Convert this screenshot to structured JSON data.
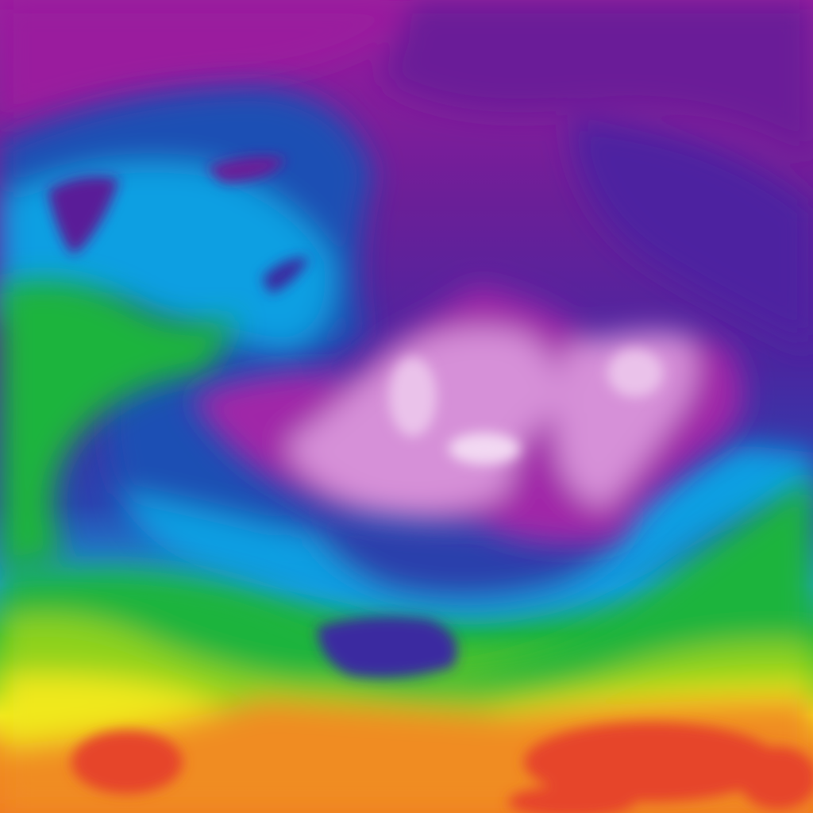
{
  "map": {
    "palette": {
      "polar_magenta": "#9a1c9e",
      "deep_purple": "#5e1e98",
      "indigo": "#3a2aa0",
      "blue": "#1f50b4",
      "cyan": "#0a9fe2",
      "teal": "#10a8a0",
      "green": "#1fb43c",
      "lime": "#8ed21a",
      "yellow": "#f0e81a",
      "orange": "#f08c22",
      "red": "#e6442a",
      "cold_pink": "#d690d8",
      "cold_white": "#f2d8f2"
    }
  }
}
